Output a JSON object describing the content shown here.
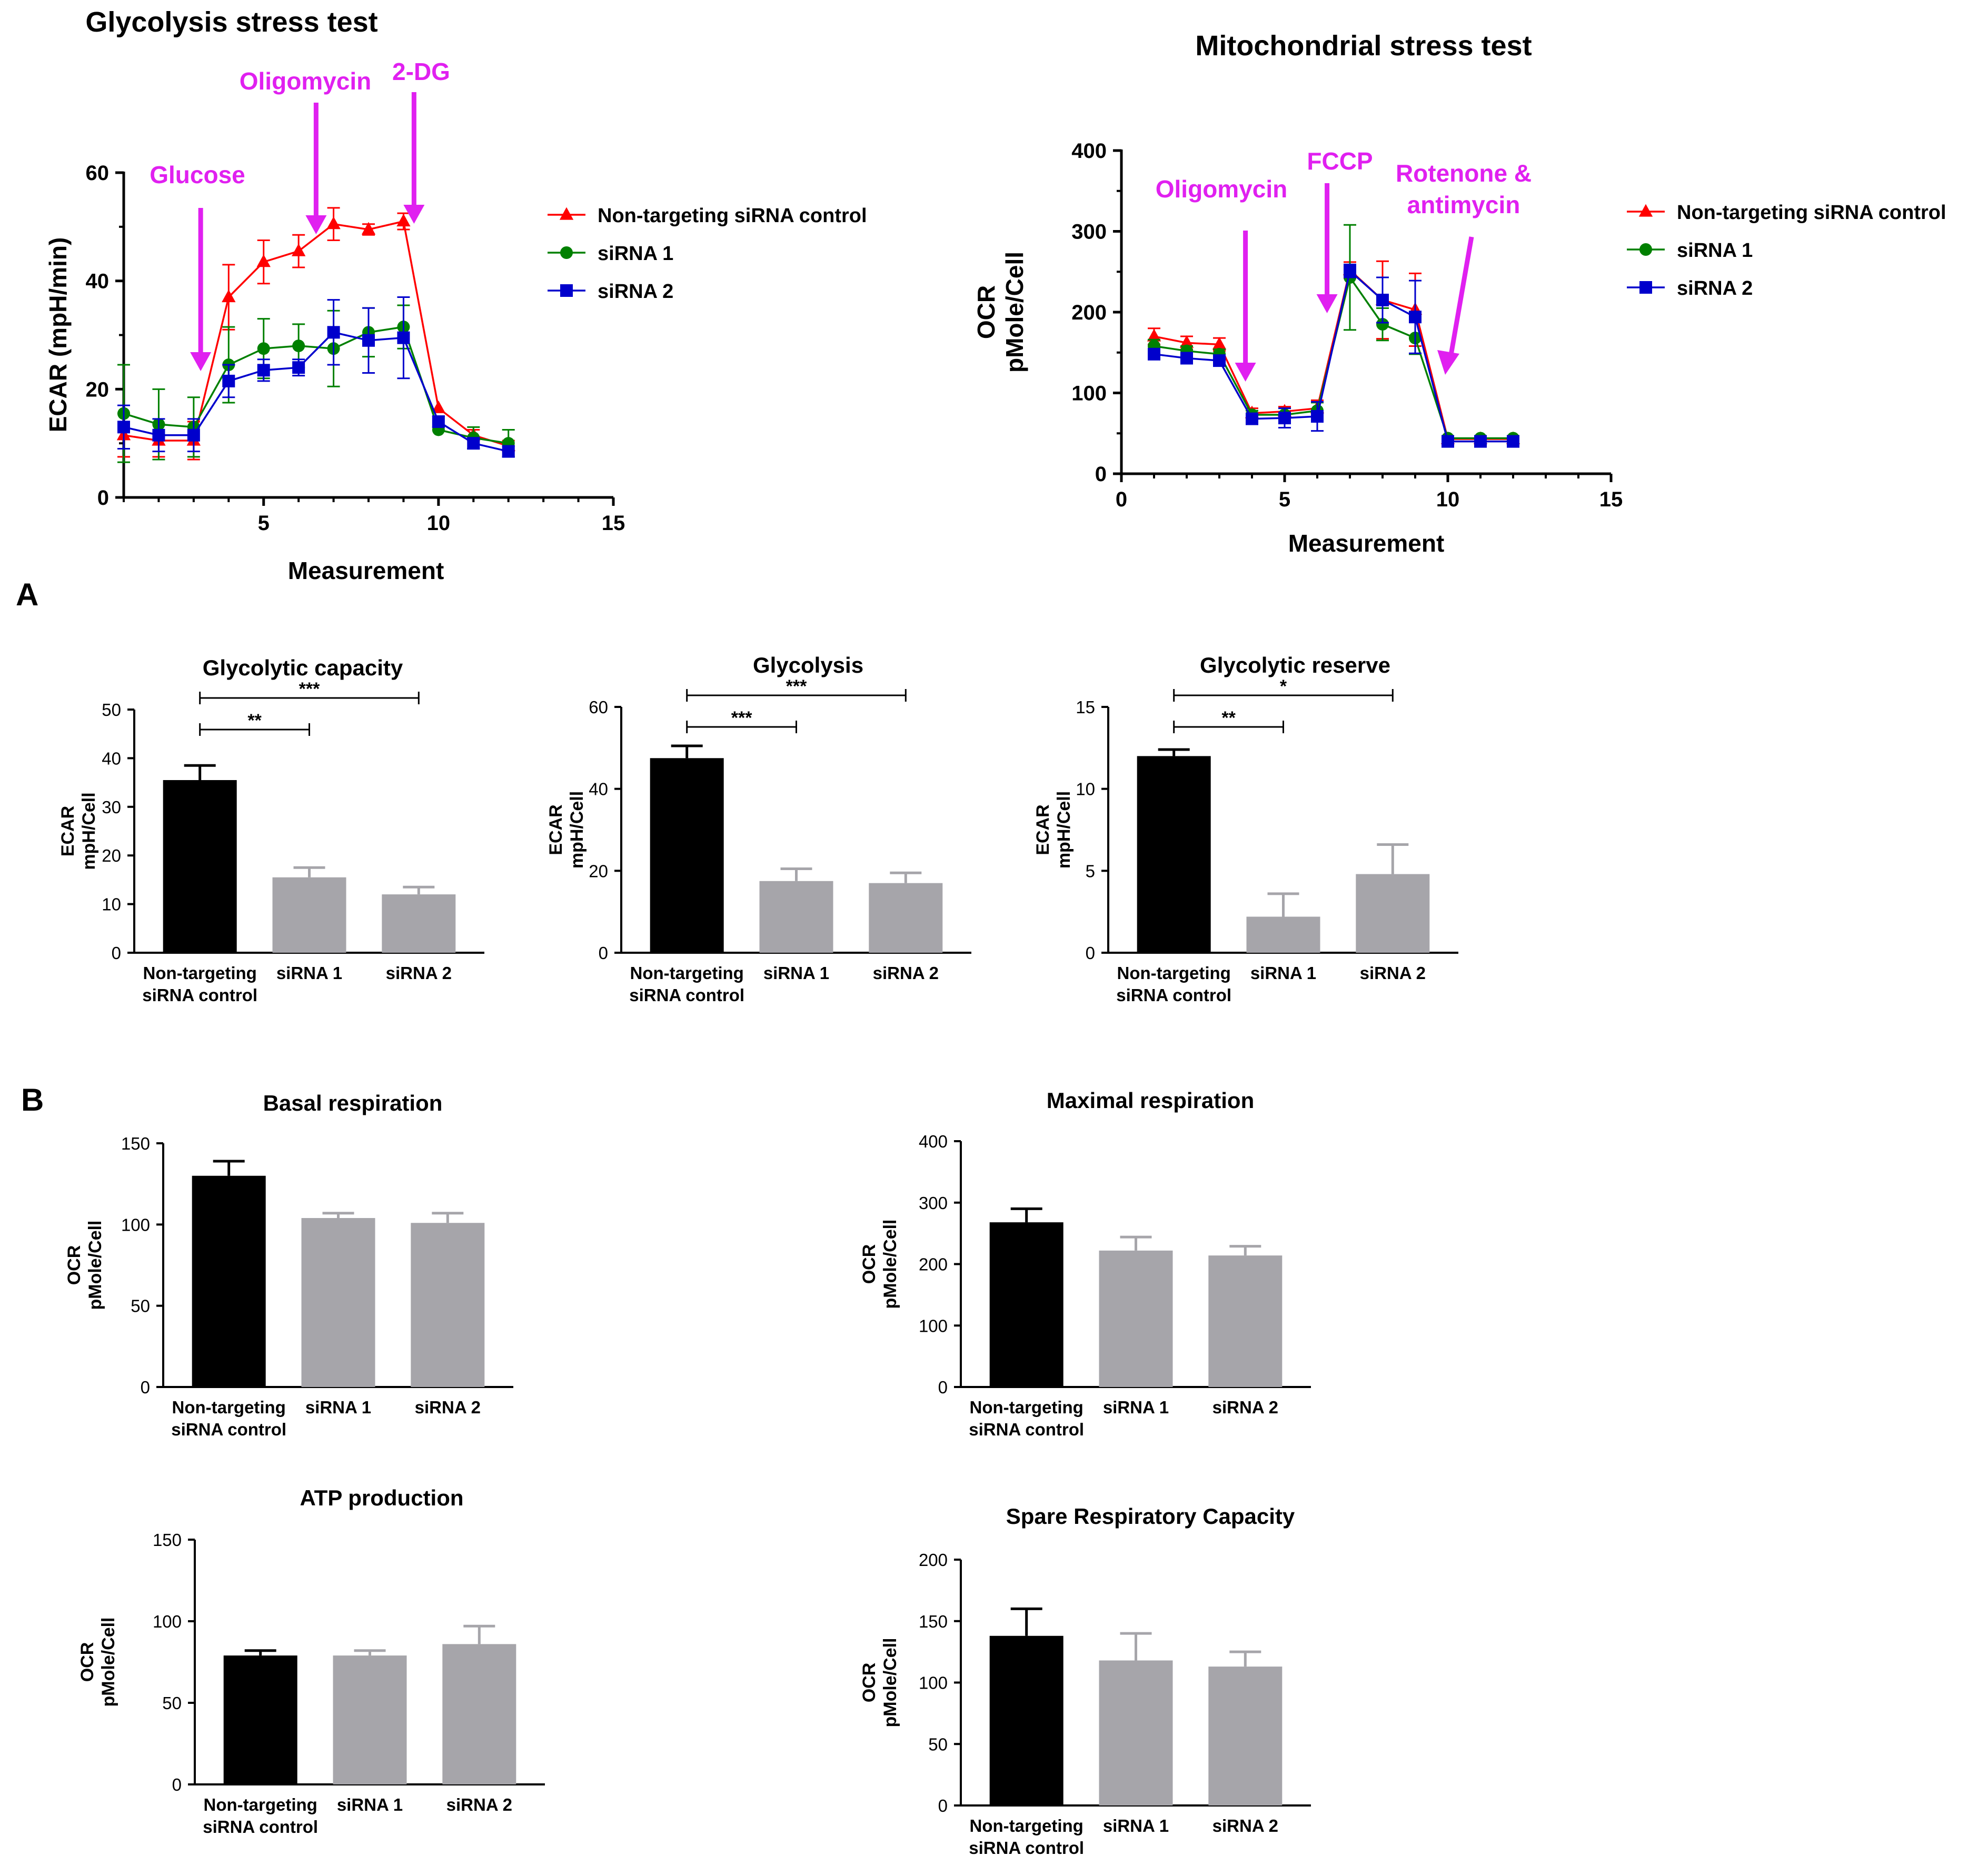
{
  "panel_labels": {
    "A": "A",
    "B": "B"
  },
  "colors": {
    "control": "#ff0000",
    "sirna1": "#008000",
    "sirna2": "#0000cc",
    "annotation": "#e020f0",
    "bar_control": "#000000",
    "bar_sirna": "#a6a5aa"
  },
  "chart_data": [
    {
      "id": "glyco-stress",
      "type": "line",
      "title": "Glycolysis stress test",
      "xlabel": "Measurement",
      "ylabel": "ECAR (mpH/min)",
      "ylabel_lines": [
        "ECAR (mpH/min)"
      ],
      "xlim": [
        1,
        15
      ],
      "ylim": [
        0,
        60
      ],
      "xticks": [
        5,
        10,
        15
      ],
      "yticks": [
        0,
        20,
        40,
        60
      ],
      "series": [
        {
          "name": "Non-targeting siRNA control",
          "color": "#ff0000",
          "marker": "triangle",
          "x": [
            1,
            2,
            3,
            4,
            5,
            6,
            7,
            8,
            9,
            10,
            11,
            12
          ],
          "y": [
            11.5,
            10.5,
            10.5,
            37,
            43.5,
            45.5,
            50.5,
            49.5,
            51,
            16.5,
            11.5,
            9.5
          ],
          "err": [
            4,
            3,
            3.5,
            6,
            4,
            3,
            3,
            1,
            1.5,
            0,
            1,
            1
          ]
        },
        {
          "name": "siRNA 1",
          "color": "#008000",
          "marker": "circle",
          "x": [
            1,
            2,
            3,
            4,
            5,
            6,
            7,
            8,
            9,
            10,
            11,
            12
          ],
          "y": [
            15.5,
            13.5,
            13,
            24.5,
            27.5,
            28,
            27.5,
            30.5,
            31.5,
            12.5,
            11,
            10
          ],
          "err": [
            9,
            6.5,
            5.5,
            7,
            5.5,
            4,
            7,
            4.5,
            4,
            0,
            2,
            2.5
          ]
        },
        {
          "name": "siRNA 2",
          "color": "#0000cc",
          "marker": "square",
          "x": [
            1,
            2,
            3,
            4,
            5,
            6,
            7,
            8,
            9,
            10,
            11,
            12
          ],
          "y": [
            13,
            11.5,
            11.5,
            21.5,
            23.5,
            24,
            30.5,
            29,
            29.5,
            14,
            10,
            8.5
          ],
          "err": [
            4,
            3,
            3,
            3,
            2,
            1.5,
            6,
            6,
            7.5,
            1,
            1,
            1
          ]
        }
      ],
      "annotations": [
        {
          "label": "Glucose",
          "x": 3.2
        },
        {
          "label": "Oligomycin",
          "x": 6.5
        },
        {
          "label": "2-DG",
          "x": 9.3
        }
      ]
    },
    {
      "id": "mito-stress",
      "type": "line",
      "title": "Mitochondrial stress test",
      "xlabel": "Measurement",
      "ylabel": "OCR pMole/Cell",
      "ylabel_lines": [
        "OCR",
        "pMole/Cell"
      ],
      "xlim": [
        0,
        15
      ],
      "ylim": [
        0,
        400
      ],
      "xticks": [
        0,
        5,
        10,
        15
      ],
      "yticks": [
        0,
        100,
        200,
        300,
        400
      ],
      "series": [
        {
          "name": "Non-targeting siRNA control",
          "color": "#ff0000",
          "marker": "triangle",
          "x": [
            1,
            2,
            3,
            4,
            5,
            6,
            7,
            8,
            9,
            10,
            11,
            12
          ],
          "y": [
            170,
            162,
            160,
            75,
            77,
            81,
            252,
            215,
            203,
            43,
            43,
            43
          ],
          "err": [
            10,
            8,
            8,
            6,
            6,
            10,
            10,
            48,
            45,
            3,
            3,
            3
          ]
        },
        {
          "name": "siRNA 1",
          "color": "#008000",
          "marker": "circle",
          "x": [
            1,
            2,
            3,
            4,
            5,
            6,
            7,
            8,
            9,
            10,
            11,
            12
          ],
          "y": [
            158,
            152,
            148,
            73,
            73,
            78,
            243,
            185,
            168,
            44,
            44,
            44
          ],
          "err": [
            8,
            6,
            6,
            5,
            8,
            10,
            65,
            20,
            20,
            3,
            3,
            3
          ]
        },
        {
          "name": "siRNA 2",
          "color": "#0000cc",
          "marker": "square",
          "x": [
            1,
            2,
            3,
            4,
            5,
            6,
            7,
            8,
            9,
            10,
            11,
            12
          ],
          "y": [
            148,
            143,
            140,
            68,
            69,
            71,
            251,
            215,
            194,
            40,
            40,
            40
          ],
          "err": [
            6,
            5,
            5,
            6,
            12,
            18,
            8,
            28,
            45,
            3,
            3,
            3
          ]
        }
      ],
      "annotations": [
        {
          "label": "Oligomycin",
          "x": 3.8
        },
        {
          "label": "FCCP",
          "x": 6.3
        },
        {
          "label": "Rotenone &",
          "label2": "antimycin",
          "x": 10
        }
      ]
    },
    {
      "id": "glycolytic-capacity",
      "type": "bar",
      "title": "Glycolytic capacity",
      "ylabel_lines": [
        "ECAR",
        "mpH/Cell"
      ],
      "ylim": [
        0,
        50
      ],
      "yticks": [
        0,
        10,
        20,
        30,
        40,
        50
      ],
      "categories": [
        [
          "Non-targeting",
          "siRNA control"
        ],
        [
          "siRNA 1"
        ],
        [
          "siRNA 2"
        ]
      ],
      "values": [
        35.5,
        15.5,
        12
      ],
      "errors": [
        3,
        2,
        1.5
      ],
      "significance": [
        {
          "from": 0,
          "to": 2,
          "label": "***"
        },
        {
          "from": 0,
          "to": 1,
          "label": "**"
        }
      ]
    },
    {
      "id": "glycolysis",
      "type": "bar",
      "title": "Glycolysis",
      "ylabel_lines": [
        "ECAR",
        "mpH/Cell"
      ],
      "ylim": [
        0,
        60
      ],
      "yticks": [
        0,
        20,
        40,
        60
      ],
      "categories": [
        [
          "Non-targeting",
          "siRNA control"
        ],
        [
          "siRNA 1"
        ],
        [
          "siRNA 2"
        ]
      ],
      "values": [
        47.5,
        17.5,
        17
      ],
      "errors": [
        3,
        3,
        2.5
      ],
      "significance": [
        {
          "from": 0,
          "to": 2,
          "label": "***"
        },
        {
          "from": 0,
          "to": 1,
          "label": "***"
        }
      ]
    },
    {
      "id": "glycolytic-reserve",
      "type": "bar",
      "title": "Glycolytic reserve",
      "ylabel_lines": [
        "ECAR",
        "mpH/Cell"
      ],
      "ylim": [
        0,
        15
      ],
      "yticks": [
        0,
        5,
        10,
        15
      ],
      "categories": [
        [
          "Non-targeting",
          "siRNA control"
        ],
        [
          "siRNA 1"
        ],
        [
          "siRNA 2"
        ]
      ],
      "values": [
        12,
        2.2,
        4.8
      ],
      "errors": [
        0.4,
        1.4,
        1.8
      ],
      "significance": [
        {
          "from": 0,
          "to": 2,
          "label": "*"
        },
        {
          "from": 0,
          "to": 1,
          "label": "**"
        }
      ]
    },
    {
      "id": "basal-respiration",
      "type": "bar",
      "title": "Basal respiration",
      "ylabel_lines": [
        "OCR",
        "pMole/Cell"
      ],
      "ylim": [
        0,
        150
      ],
      "yticks": [
        0,
        50,
        100,
        150
      ],
      "categories": [
        [
          "Non-targeting",
          "siRNA control"
        ],
        [
          "siRNA 1"
        ],
        [
          "siRNA 2"
        ]
      ],
      "values": [
        130,
        104,
        101
      ],
      "errors": [
        9,
        3,
        6
      ],
      "significance": []
    },
    {
      "id": "maximal-respiration",
      "type": "bar",
      "title": "Maximal respiration",
      "ylabel_lines": [
        "OCR",
        "pMole/Cell"
      ],
      "ylim": [
        0,
        400
      ],
      "yticks": [
        0,
        100,
        200,
        300,
        400
      ],
      "categories": [
        [
          "Non-targeting",
          "siRNA control"
        ],
        [
          "siRNA 1"
        ],
        [
          "siRNA 2"
        ]
      ],
      "values": [
        268,
        222,
        214
      ],
      "errors": [
        22,
        22,
        15
      ],
      "significance": []
    },
    {
      "id": "atp-production",
      "type": "bar",
      "title": "ATP production",
      "ylabel_lines": [
        "OCR",
        "pMole/Cell"
      ],
      "ylim": [
        0,
        150
      ],
      "yticks": [
        0,
        50,
        100,
        150
      ],
      "categories": [
        [
          "Non-targeting",
          "siRNA control"
        ],
        [
          "siRNA 1"
        ],
        [
          "siRNA 2"
        ]
      ],
      "values": [
        79,
        79,
        86
      ],
      "errors": [
        3,
        3,
        11
      ],
      "significance": []
    },
    {
      "id": "spare-respiratory-capacity",
      "type": "bar",
      "title": "Spare Respiratory Capacity",
      "ylabel_lines": [
        "OCR",
        "pMole/Cell"
      ],
      "ylim": [
        0,
        200
      ],
      "yticks": [
        0,
        50,
        100,
        150,
        200
      ],
      "categories": [
        [
          "Non-targeting",
          "siRNA control"
        ],
        [
          "siRNA 1"
        ],
        [
          "siRNA 2"
        ]
      ],
      "values": [
        138,
        118,
        113
      ],
      "errors": [
        22,
        22,
        12
      ],
      "significance": []
    }
  ]
}
